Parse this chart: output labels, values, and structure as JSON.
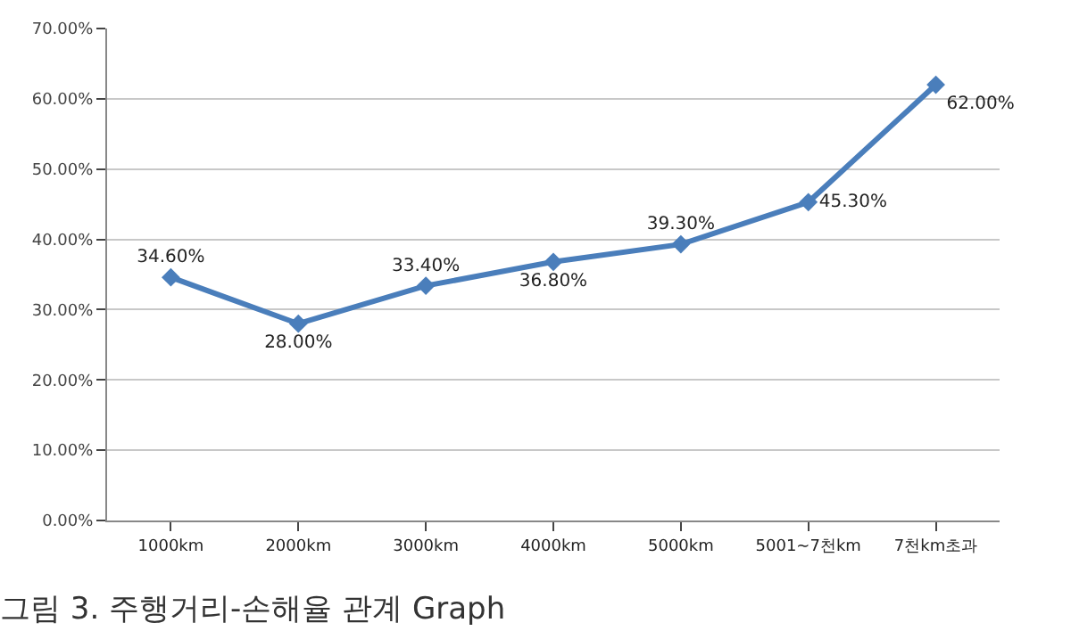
{
  "chart_data": {
    "type": "line",
    "title": "그림 3. 주행거리-손해율 관계 Graph",
    "categories": [
      "1000km",
      "2000km",
      "3000km",
      "4000km",
      "5000km",
      "5001~7천km",
      "7천km초과"
    ],
    "series": [
      {
        "color": "#4a7ebb",
        "values": [
          34.6,
          28.0,
          33.4,
          36.8,
          39.3,
          45.3,
          62.0
        ],
        "value_labels": [
          "34.60%",
          "28.00%",
          "33.40%",
          "36.80%",
          "39.30%",
          "45.30%",
          "62.00%"
        ]
      }
    ],
    "ylim": [
      0,
      70
    ],
    "yticks": [
      {
        "value": 0,
        "label": "0.00%"
      },
      {
        "value": 10,
        "label": "10.00%"
      },
      {
        "value": 20,
        "label": "20.00%"
      },
      {
        "value": 30,
        "label": "30.00%"
      },
      {
        "value": 40,
        "label": "40.00%"
      },
      {
        "value": 50,
        "label": "50.00%"
      },
      {
        "value": 60,
        "label": "60.00%"
      },
      {
        "value": 70,
        "label": "70.00%"
      }
    ],
    "grid": "y",
    "marker": "diamond",
    "line_style": "solid"
  }
}
